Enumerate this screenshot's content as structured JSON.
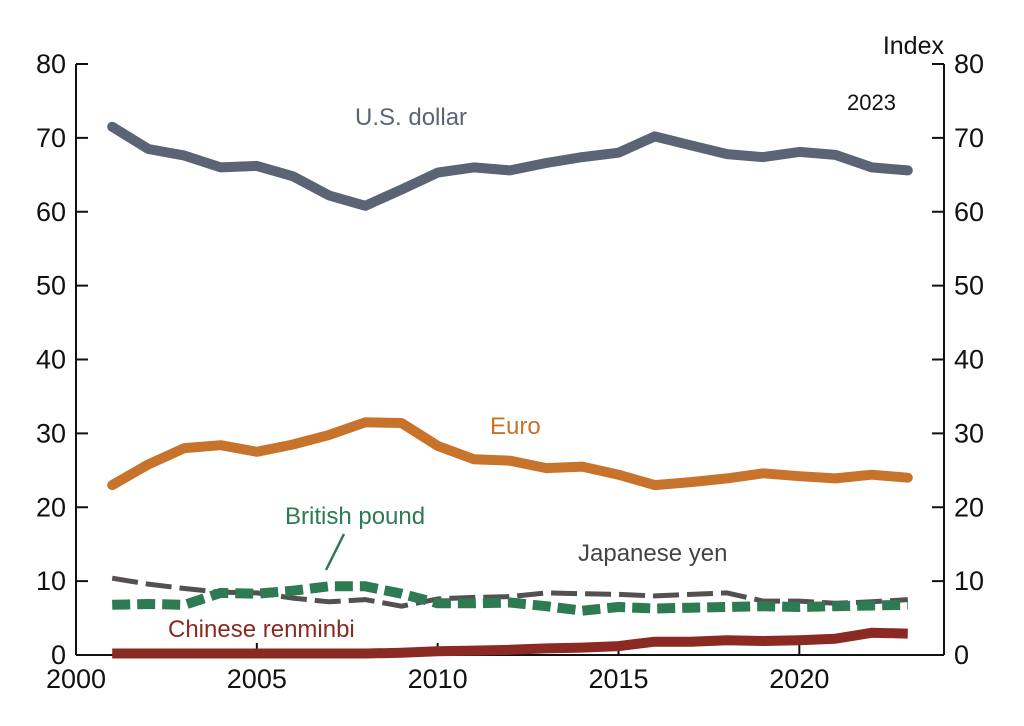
{
  "chart_data": {
    "type": "line",
    "unit_label": "Index",
    "latest_year_label": "2023",
    "xlim": [
      2000,
      2024
    ],
    "ylim": [
      0,
      80
    ],
    "x_ticks": [
      2000,
      2005,
      2010,
      2015,
      2020
    ],
    "x_tick_labels": [
      "2000",
      "2005",
      "2010",
      "2015",
      "2020"
    ],
    "y_ticks": [
      0,
      10,
      20,
      30,
      40,
      50,
      60,
      70,
      80
    ],
    "y_tick_labels": [
      "0",
      "10",
      "20",
      "30",
      "40",
      "50",
      "60",
      "70",
      "80"
    ],
    "grid": false,
    "x": [
      2001,
      2002,
      2003,
      2004,
      2005,
      2006,
      2007,
      2008,
      2009,
      2010,
      2011,
      2012,
      2013,
      2014,
      2015,
      2016,
      2017,
      2018,
      2019,
      2020,
      2021,
      2022,
      2023
    ],
    "series": [
      {
        "name": "U.S. dollar",
        "color": "#5b6475",
        "style": "solid",
        "values": [
          71.5,
          68.5,
          67.6,
          66.0,
          66.2,
          64.8,
          62.2,
          60.8,
          63.0,
          65.3,
          66.0,
          65.6,
          66.6,
          67.4,
          68.0,
          70.2,
          69.0,
          67.8,
          67.4,
          68.1,
          67.7,
          66.0,
          65.6
        ]
      },
      {
        "name": "Euro",
        "color": "#c8732b",
        "style": "solid",
        "values": [
          23.0,
          25.8,
          28.0,
          28.4,
          27.5,
          28.5,
          29.8,
          31.5,
          31.4,
          28.3,
          26.5,
          26.3,
          25.3,
          25.5,
          24.4,
          23.0,
          23.4,
          23.9,
          24.6,
          24.2,
          23.9,
          24.4,
          24.0
        ]
      },
      {
        "name": "British pound",
        "color": "#2e7a52",
        "style": "dotted",
        "values": [
          6.8,
          6.9,
          6.8,
          8.4,
          8.3,
          8.7,
          9.3,
          9.3,
          8.3,
          7.0,
          7.0,
          7.1,
          6.6,
          6.0,
          6.5,
          6.3,
          6.4,
          6.5,
          6.6,
          6.5,
          6.6,
          6.7,
          6.8
        ]
      },
      {
        "name": "Japanese yen",
        "color": "#555050",
        "style": "dashed",
        "values": [
          10.4,
          9.6,
          9.0,
          8.5,
          8.4,
          7.7,
          7.2,
          7.5,
          6.6,
          7.6,
          7.8,
          7.9,
          8.4,
          8.3,
          8.2,
          8.0,
          8.2,
          8.4,
          7.3,
          7.3,
          7.0,
          7.2,
          7.5
        ]
      },
      {
        "name": "Chinese renminbi",
        "color": "#8b2a22",
        "style": "solid",
        "values": [
          0.2,
          0.2,
          0.2,
          0.2,
          0.2,
          0.2,
          0.2,
          0.2,
          0.3,
          0.5,
          0.6,
          0.7,
          0.9,
          1.0,
          1.2,
          1.8,
          1.8,
          2.0,
          1.9,
          2.0,
          2.2,
          3.0,
          2.9
        ]
      }
    ]
  }
}
